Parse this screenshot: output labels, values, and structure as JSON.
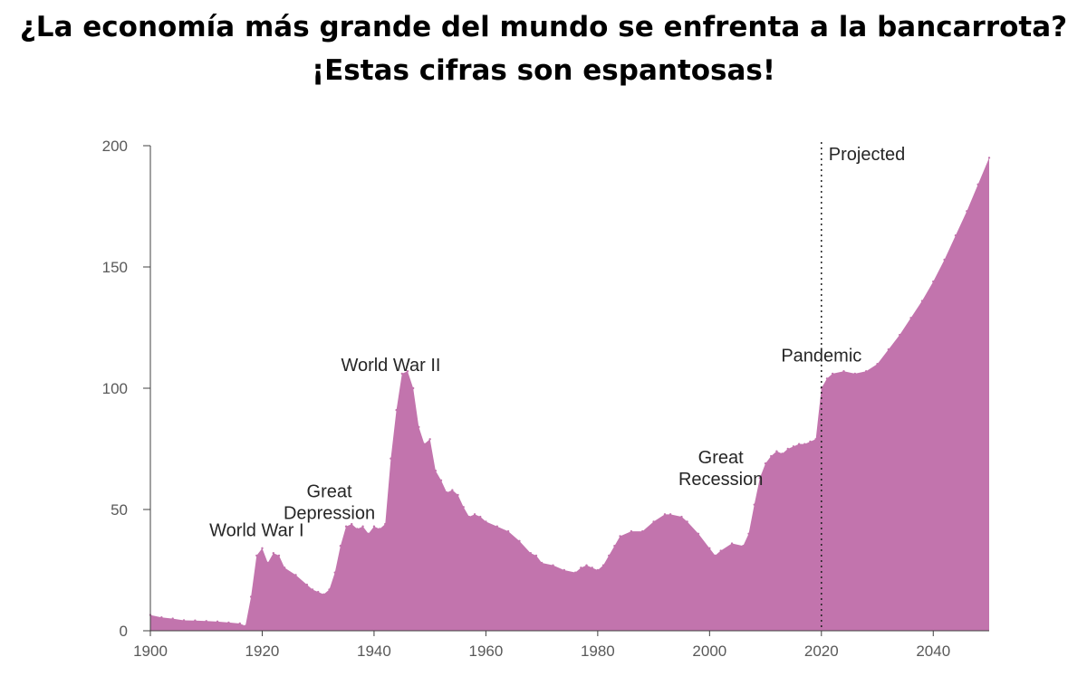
{
  "title_line1": "¿La economía más grande del mundo se enfrenta a la bancarrota?",
  "title_line2": "¡Estas cifras son espantosas!",
  "chart_data": {
    "type": "area",
    "title": "",
    "xlabel": "",
    "ylabel": "",
    "xlim": [
      1900,
      2050
    ],
    "ylim": [
      0,
      200
    ],
    "color": "#c274ad",
    "x_ticks": [
      1900,
      1920,
      1940,
      1960,
      1980,
      2000,
      2020,
      2040
    ],
    "y_ticks": [
      0,
      50,
      100,
      150,
      200
    ],
    "projection_start": 2020,
    "projection_label": "Projected",
    "annotations": [
      {
        "lines": [
          "World War I"
        ],
        "x": 1919,
        "y": 39
      },
      {
        "lines": [
          "Great",
          "Depression"
        ],
        "x": 1932,
        "y": 46
      },
      {
        "lines": [
          "World War II"
        ],
        "x": 1943,
        "y": 107
      },
      {
        "lines": [
          "Great",
          "Recession"
        ],
        "x": 2002,
        "y": 60
      },
      {
        "lines": [
          "Pandemic"
        ],
        "x": 2020,
        "y": 111
      }
    ],
    "x": [
      1900,
      1902,
      1904,
      1906,
      1908,
      1910,
      1912,
      1914,
      1916,
      1917,
      1918,
      1919,
      1920,
      1921,
      1922,
      1923,
      1924,
      1926,
      1928,
      1929,
      1930,
      1931,
      1932,
      1933,
      1934,
      1935,
      1936,
      1937,
      1938,
      1939,
      1940,
      1941,
      1942,
      1943,
      1944,
      1945,
      1946,
      1947,
      1948,
      1949,
      1950,
      1951,
      1952,
      1953,
      1954,
      1955,
      1956,
      1957,
      1958,
      1959,
      1960,
      1962,
      1964,
      1966,
      1968,
      1969,
      1970,
      1972,
      1974,
      1976,
      1977,
      1978,
      1979,
      1980,
      1981,
      1982,
      1983,
      1984,
      1986,
      1988,
      1990,
      1992,
      1993,
      1995,
      1996,
      1998,
      2000,
      2001,
      2002,
      2004,
      2006,
      2007,
      2008,
      2009,
      2010,
      2011,
      2012,
      2013,
      2014,
      2015,
      2016,
      2017,
      2018,
      2019,
      2020,
      2021,
      2022,
      2024,
      2026,
      2028,
      2030,
      2032,
      2034,
      2036,
      2038,
      2040,
      2042,
      2044,
      2046,
      2048,
      2050
    ],
    "values": [
      6.5,
      5.5,
      5,
      4.3,
      4.2,
      4,
      3.8,
      3.4,
      3,
      2,
      14,
      31,
      34,
      28,
      32,
      31,
      26,
      23,
      19,
      17,
      16,
      15,
      17,
      24,
      35,
      43,
      44,
      42,
      43,
      40,
      43,
      42,
      44,
      71,
      91,
      106,
      107,
      100,
      84,
      77,
      79,
      66,
      62,
      57,
      58,
      56,
      51,
      47,
      48,
      47,
      45,
      43,
      41,
      37,
      32,
      31,
      28,
      27,
      25,
      24,
      26,
      27,
      26,
      25,
      27,
      31,
      35,
      39,
      41,
      41,
      45,
      48,
      48,
      47,
      45,
      40,
      34,
      31,
      33,
      36,
      35,
      40,
      52,
      63,
      69,
      72,
      74,
      73,
      75,
      76,
      77,
      77,
      78,
      79,
      100,
      104,
      106,
      107,
      106,
      107,
      110,
      116,
      122,
      129,
      136,
      144,
      153,
      163,
      173,
      184,
      195
    ]
  }
}
